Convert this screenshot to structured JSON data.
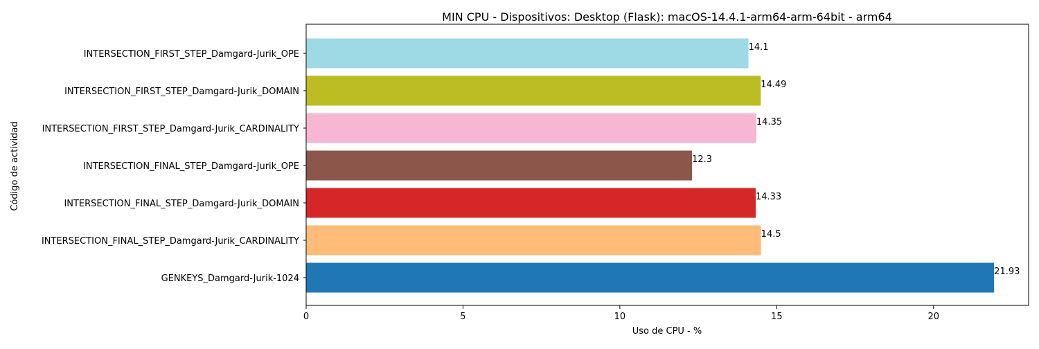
{
  "chart_data": {
    "type": "bar",
    "orientation": "horizontal",
    "title": "MIN CPU - Dispositivos: Desktop (Flask): macOS-14.4.1-arm64-arm-64bit - arm64",
    "xlabel": "Uso de CPU - %",
    "ylabel": "Código de actividad",
    "xlim": [
      0,
      23.03
    ],
    "xticks": [
      0,
      5,
      10,
      15,
      20
    ],
    "xtick_labels": [
      "0",
      "5",
      "10",
      "15",
      "20"
    ],
    "grid": false,
    "legend": "none",
    "categories": [
      "GENKEYS_Damgard-Jurik-1024",
      "INTERSECTION_FINAL_STEP_Damgard-Jurik_CARDINALITY",
      "INTERSECTION_FINAL_STEP_Damgard-Jurik_DOMAIN",
      "INTERSECTION_FINAL_STEP_Damgard-Jurik_OPE",
      "INTERSECTION_FIRST_STEP_Damgard-Jurik_CARDINALITY",
      "INTERSECTION_FIRST_STEP_Damgard-Jurik_DOMAIN",
      "INTERSECTION_FIRST_STEP_Damgard-Jurik_OPE"
    ],
    "values": [
      21.93,
      14.5,
      14.33,
      12.3,
      14.35,
      14.49,
      14.1
    ],
    "value_labels": [
      "21.93",
      "14.5",
      "14.33",
      "12.3",
      "14.35",
      "14.49",
      "14.1"
    ],
    "colors": [
      "#1f77b4",
      "#ffbb78",
      "#d62728",
      "#8c564b",
      "#f7b6d2",
      "#bcbd22",
      "#9edae5"
    ]
  }
}
